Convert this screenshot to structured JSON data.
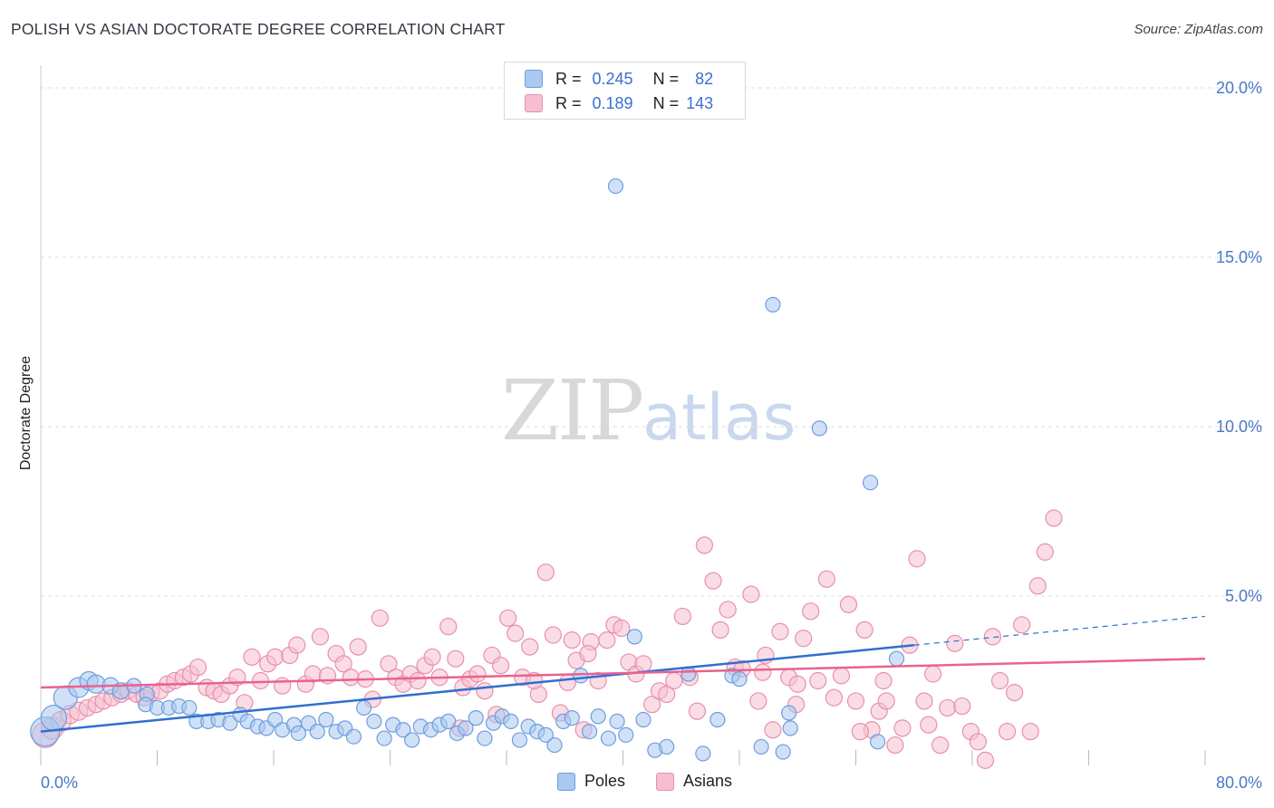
{
  "title": "POLISH VS ASIAN DOCTORATE DEGREE CORRELATION CHART",
  "source": "Source: ZipAtlas.com",
  "watermark": {
    "zip": "ZIP",
    "atlas": "atlas"
  },
  "colors": {
    "poles_fill": "#aac8f0",
    "poles_stroke": "#6f9ddf",
    "poles_line": "#2f6fd0",
    "asians_fill": "#f6bfd0",
    "asians_stroke": "#ea8fac",
    "asians_line": "#e8638f",
    "tick_label": "#4a78c9",
    "grid": "#dddddd"
  },
  "legend": {
    "rows": [
      {
        "r_label": "R =",
        "r_value": "0.245",
        "n_label": "N =",
        "n_value": "82",
        "series": "Poles"
      },
      {
        "r_label": "R =",
        "r_value": "0.189",
        "n_label": "N =",
        "n_value": "143",
        "series": "Asians"
      }
    ]
  },
  "chart_data": {
    "type": "scatter",
    "title": "POLISH VS ASIAN DOCTORATE DEGREE CORRELATION CHART",
    "xlabel": "",
    "ylabel": "Doctorate Degree",
    "xlim": [
      0,
      80
    ],
    "ylim": [
      0,
      20.5
    ],
    "x_tick_labels": [
      "0.0%",
      "80.0%"
    ],
    "y_ticks": [
      5,
      10,
      15,
      20
    ],
    "y_tick_labels": [
      "5.0%",
      "10.0%",
      "15.0%",
      "20.0%"
    ],
    "grid": true,
    "legend_position": "top-center",
    "series": [
      {
        "name": "Poles",
        "R": 0.245,
        "N": 82,
        "trend": {
          "x0": 0,
          "y0": 1.0,
          "x1": 60,
          "y1": 3.55,
          "dashed_to_x": 80,
          "dashed_to_y": 4.4
        },
        "points": [
          [
            0.3,
            1.0,
            16
          ],
          [
            0.9,
            1.4,
            14
          ],
          [
            1.7,
            2.0,
            13
          ],
          [
            2.6,
            2.3,
            11
          ],
          [
            3.3,
            2.5,
            10
          ],
          [
            3.8,
            2.4,
            10
          ],
          [
            4.8,
            2.35,
            9
          ],
          [
            5.5,
            2.2,
            9
          ],
          [
            6.4,
            2.35,
            8
          ],
          [
            7.3,
            2.1,
            8
          ],
          [
            7.2,
            1.8,
            8
          ],
          [
            8.0,
            1.7,
            8
          ],
          [
            8.8,
            1.7,
            8
          ],
          [
            9.5,
            1.75,
            8
          ],
          [
            10.2,
            1.7,
            8
          ],
          [
            10.7,
            1.3,
            8
          ],
          [
            11.5,
            1.3,
            8
          ],
          [
            12.2,
            1.35,
            8
          ],
          [
            13.0,
            1.25,
            8
          ],
          [
            13.7,
            1.5,
            8
          ],
          [
            14.2,
            1.3,
            8
          ],
          [
            14.9,
            1.15,
            8
          ],
          [
            15.5,
            1.1,
            8
          ],
          [
            16.1,
            1.35,
            8
          ],
          [
            16.6,
            1.05,
            8
          ],
          [
            17.4,
            1.2,
            8
          ],
          [
            17.7,
            0.95,
            8
          ],
          [
            18.4,
            1.25,
            8
          ],
          [
            19.0,
            1.0,
            8
          ],
          [
            19.6,
            1.35,
            8
          ],
          [
            20.3,
            1.0,
            8
          ],
          [
            20.9,
            1.1,
            8
          ],
          [
            21.5,
            0.85,
            8
          ],
          [
            22.2,
            1.7,
            8
          ],
          [
            22.9,
            1.3,
            8
          ],
          [
            23.6,
            0.8,
            8
          ],
          [
            24.2,
            1.2,
            8
          ],
          [
            24.9,
            1.05,
            8
          ],
          [
            25.5,
            0.75,
            8
          ],
          [
            26.1,
            1.15,
            8
          ],
          [
            26.8,
            1.05,
            8
          ],
          [
            27.4,
            1.2,
            8
          ],
          [
            28.0,
            1.3,
            8
          ],
          [
            28.6,
            0.95,
            8
          ],
          [
            29.2,
            1.1,
            8
          ],
          [
            29.9,
            1.4,
            8
          ],
          [
            30.5,
            0.8,
            8
          ],
          [
            31.1,
            1.25,
            8
          ],
          [
            31.7,
            1.45,
            8
          ],
          [
            32.3,
            1.3,
            8
          ],
          [
            32.9,
            0.75,
            8
          ],
          [
            33.5,
            1.15,
            8
          ],
          [
            34.1,
            1.0,
            8
          ],
          [
            34.7,
            0.9,
            8
          ],
          [
            35.3,
            0.6,
            8
          ],
          [
            35.9,
            1.3,
            8
          ],
          [
            36.5,
            1.4,
            8
          ],
          [
            37.1,
            2.65,
            8
          ],
          [
            37.7,
            1.0,
            8
          ],
          [
            38.3,
            1.45,
            8
          ],
          [
            39.0,
            0.8,
            8
          ],
          [
            39.6,
            1.3,
            8
          ],
          [
            40.2,
            0.9,
            8
          ],
          [
            40.8,
            3.8,
            8
          ],
          [
            41.4,
            1.35,
            8
          ],
          [
            42.2,
            0.45,
            8
          ],
          [
            43.0,
            0.55,
            8
          ],
          [
            44.5,
            2.7,
            8
          ],
          [
            45.5,
            0.35,
            8
          ],
          [
            46.5,
            1.35,
            8
          ],
          [
            47.5,
            2.65,
            8
          ],
          [
            48.0,
            2.55,
            8
          ],
          [
            49.5,
            0.55,
            8
          ],
          [
            51.0,
            0.4,
            8
          ],
          [
            51.5,
            1.1,
            8
          ],
          [
            51.4,
            1.55,
            8
          ],
          [
            53.5,
            9.95,
            8
          ],
          [
            57.0,
            8.35,
            8
          ],
          [
            57.5,
            0.7,
            8
          ],
          [
            58.8,
            3.15,
            8
          ],
          [
            39.5,
            17.1,
            8
          ],
          [
            50.3,
            13.6,
            8
          ]
        ]
      },
      {
        "name": "Asians",
        "R": 0.189,
        "N": 143,
        "trend": {
          "x0": 0,
          "y0": 2.3,
          "x1": 80,
          "y1": 3.15
        },
        "points": [
          [
            0.3,
            0.9,
            14
          ],
          [
            0.8,
            1.1,
            12
          ],
          [
            1.4,
            1.3,
            11
          ],
          [
            2.0,
            1.5,
            10
          ],
          [
            2.6,
            1.6,
            10
          ],
          [
            3.2,
            1.7,
            9
          ],
          [
            3.8,
            1.8,
            9
          ],
          [
            4.3,
            1.9,
            9
          ],
          [
            4.9,
            2.0,
            9
          ],
          [
            5.5,
            2.1,
            9
          ],
          [
            6.0,
            2.2,
            9
          ],
          [
            6.6,
            2.1,
            9
          ],
          [
            7.1,
            2.0,
            9
          ],
          [
            7.6,
            2.15,
            9
          ],
          [
            8.2,
            2.2,
            9
          ],
          [
            8.7,
            2.4,
            9
          ],
          [
            9.2,
            2.5,
            9
          ],
          [
            9.8,
            2.6,
            9
          ],
          [
            10.3,
            2.7,
            9
          ],
          [
            10.8,
            2.9,
            9
          ],
          [
            11.4,
            2.3,
            9
          ],
          [
            11.9,
            2.2,
            9
          ],
          [
            12.4,
            2.1,
            9
          ],
          [
            13.0,
            2.35,
            9
          ],
          [
            13.5,
            2.6,
            9
          ],
          [
            14.0,
            1.85,
            9
          ],
          [
            14.5,
            3.2,
            9
          ],
          [
            15.1,
            2.5,
            9
          ],
          [
            15.6,
            3.0,
            9
          ],
          [
            16.1,
            3.2,
            9
          ],
          [
            16.6,
            2.35,
            9
          ],
          [
            17.1,
            3.25,
            9
          ],
          [
            17.6,
            3.55,
            9
          ],
          [
            18.2,
            2.4,
            9
          ],
          [
            18.7,
            2.7,
            9
          ],
          [
            19.2,
            3.8,
            9
          ],
          [
            19.7,
            2.65,
            9
          ],
          [
            20.3,
            3.3,
            9
          ],
          [
            20.8,
            3.0,
            9
          ],
          [
            21.3,
            2.6,
            9
          ],
          [
            21.8,
            3.5,
            9
          ],
          [
            22.3,
            2.55,
            9
          ],
          [
            22.8,
            1.95,
            9
          ],
          [
            23.3,
            4.35,
            9
          ],
          [
            23.9,
            3.0,
            9
          ],
          [
            24.4,
            2.6,
            9
          ],
          [
            24.9,
            2.4,
            9
          ],
          [
            25.4,
            2.7,
            9
          ],
          [
            25.9,
            2.5,
            9
          ],
          [
            26.4,
            2.95,
            9
          ],
          [
            26.9,
            3.2,
            9
          ],
          [
            27.4,
            2.6,
            9
          ],
          [
            28.0,
            4.1,
            9
          ],
          [
            28.5,
            3.15,
            9
          ],
          [
            29.0,
            2.3,
            9
          ],
          [
            29.5,
            2.55,
            9
          ],
          [
            30.0,
            2.7,
            9
          ],
          [
            30.5,
            2.2,
            9
          ],
          [
            31.0,
            3.25,
            9
          ],
          [
            31.6,
            2.95,
            9
          ],
          [
            32.1,
            4.35,
            9
          ],
          [
            32.6,
            3.9,
            9
          ],
          [
            33.1,
            2.6,
            9
          ],
          [
            33.6,
            3.5,
            9
          ],
          [
            34.2,
            2.1,
            9
          ],
          [
            34.7,
            5.7,
            9
          ],
          [
            35.2,
            3.85,
            9
          ],
          [
            35.7,
            1.55,
            9
          ],
          [
            36.2,
            2.45,
            9
          ],
          [
            36.8,
            3.1,
            9
          ],
          [
            37.3,
            1.05,
            9
          ],
          [
            37.8,
            3.65,
            9
          ],
          [
            38.3,
            2.5,
            9
          ],
          [
            38.9,
            3.7,
            9
          ],
          [
            39.4,
            4.15,
            9
          ],
          [
            39.9,
            4.05,
            9
          ],
          [
            40.4,
            3.05,
            9
          ],
          [
            40.9,
            2.7,
            9
          ],
          [
            41.4,
            3.0,
            9
          ],
          [
            42.0,
            1.8,
            9
          ],
          [
            42.5,
            2.2,
            9
          ],
          [
            43.0,
            2.1,
            9
          ],
          [
            43.5,
            2.5,
            9
          ],
          [
            44.1,
            4.4,
            9
          ],
          [
            44.6,
            2.6,
            9
          ],
          [
            45.1,
            1.6,
            9
          ],
          [
            45.6,
            6.5,
            9
          ],
          [
            46.2,
            5.45,
            9
          ],
          [
            46.7,
            4.0,
            9
          ],
          [
            47.2,
            4.6,
            9
          ],
          [
            47.7,
            2.9,
            9
          ],
          [
            48.2,
            2.85,
            9
          ],
          [
            48.8,
            5.05,
            9
          ],
          [
            49.3,
            1.9,
            9
          ],
          [
            49.8,
            3.25,
            9
          ],
          [
            50.3,
            1.05,
            9
          ],
          [
            50.8,
            3.95,
            9
          ],
          [
            51.4,
            2.6,
            9
          ],
          [
            51.9,
            1.8,
            9
          ],
          [
            52.4,
            3.75,
            9
          ],
          [
            52.9,
            4.55,
            9
          ],
          [
            53.4,
            2.5,
            9
          ],
          [
            54.0,
            5.5,
            9
          ],
          [
            54.5,
            2.0,
            9
          ],
          [
            55.0,
            2.65,
            9
          ],
          [
            55.5,
            4.75,
            9
          ],
          [
            56.0,
            1.9,
            9
          ],
          [
            56.6,
            4.0,
            9
          ],
          [
            57.1,
            1.05,
            9
          ],
          [
            57.6,
            1.6,
            9
          ],
          [
            58.1,
            1.9,
            9
          ],
          [
            58.7,
            0.6,
            9
          ],
          [
            59.2,
            1.1,
            9
          ],
          [
            59.7,
            3.55,
            9
          ],
          [
            60.2,
            6.1,
            9
          ],
          [
            60.7,
            1.9,
            9
          ],
          [
            61.3,
            2.7,
            9
          ],
          [
            61.8,
            0.6,
            9
          ],
          [
            62.3,
            1.7,
            9
          ],
          [
            62.8,
            3.6,
            9
          ],
          [
            63.3,
            1.75,
            9
          ],
          [
            63.9,
            1.0,
            9
          ],
          [
            64.4,
            0.7,
            9
          ],
          [
            64.9,
            0.15,
            9
          ],
          [
            65.4,
            3.8,
            9
          ],
          [
            65.9,
            2.5,
            9
          ],
          [
            66.4,
            1.0,
            9
          ],
          [
            66.9,
            2.15,
            9
          ],
          [
            67.4,
            4.15,
            9
          ],
          [
            68.0,
            1.0,
            9
          ],
          [
            68.5,
            5.3,
            9
          ],
          [
            69.0,
            6.3,
            9
          ],
          [
            69.6,
            7.3,
            9
          ],
          [
            28.8,
            1.1,
            9
          ],
          [
            31.3,
            1.5,
            9
          ],
          [
            33.9,
            2.5,
            9
          ],
          [
            36.5,
            3.7,
            9
          ],
          [
            37.6,
            3.3,
            9
          ],
          [
            49.6,
            2.75,
            9
          ],
          [
            52.0,
            2.4,
            9
          ],
          [
            56.3,
            1.0,
            9
          ],
          [
            57.9,
            2.5,
            9
          ],
          [
            61.0,
            1.2,
            9
          ]
        ]
      }
    ]
  }
}
